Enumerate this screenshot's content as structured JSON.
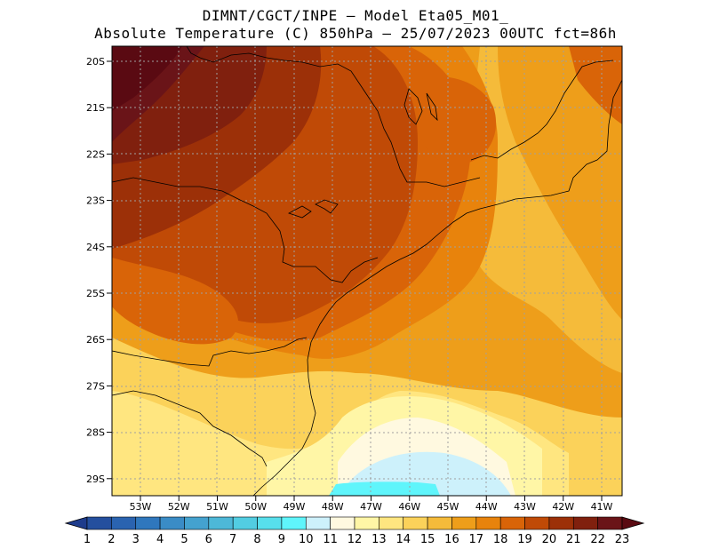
{
  "title": {
    "line1": "DIMNT/CGCT/INPE –   Model Eta05_M01_",
    "line2": "Absolute Temperature (C) 850hPa –   25/07/2023 00UTC fct=86h"
  },
  "axes": {
    "lat_ticks": [
      "20S",
      "21S",
      "22S",
      "23S",
      "24S",
      "25S",
      "26S",
      "27S",
      "28S",
      "29S"
    ],
    "lon_ticks": [
      "53W",
      "52W",
      "51W",
      "50W",
      "49W",
      "48W",
      "47W",
      "46W",
      "45W",
      "44W",
      "43W",
      "42W",
      "41W"
    ]
  },
  "colorbar": {
    "labels": [
      "1",
      "2",
      "3",
      "4",
      "5",
      "6",
      "7",
      "8",
      "9",
      "10",
      "11",
      "12",
      "13",
      "14",
      "15",
      "16",
      "17",
      "18",
      "19",
      "20",
      "21",
      "22",
      "23"
    ],
    "colors": [
      "#1e3c8c",
      "#244f9e",
      "#2a63b0",
      "#2f77bd",
      "#3a8cc6",
      "#44a2cf",
      "#4db8d8",
      "#52cde2",
      "#57dfec",
      "#5ff5fb",
      "#cdf1fb",
      "#fff9e0",
      "#fff6a6",
      "#ffe680",
      "#fbd25a",
      "#f5bb3a",
      "#ee9e1a",
      "#e8830c",
      "#d96408",
      "#c04a06",
      "#9c3008",
      "#80200e",
      "#6a1418",
      "#5a0a12"
    ]
  },
  "chart_data": {
    "type": "heatmap",
    "variable": "Absolute Temperature (C) 850hPa",
    "date": "25/07/2023 00UTC",
    "forecast": "fct=86h",
    "lon_range": [
      -53.6,
      -40.6
    ],
    "lat_range": [
      -29.4,
      -19.75
    ],
    "contour_levels": [
      1,
      2,
      3,
      4,
      5,
      6,
      7,
      8,
      9,
      10,
      11,
      12,
      13,
      14,
      15,
      16,
      17,
      18,
      19,
      20,
      21,
      22,
      23
    ]
  }
}
